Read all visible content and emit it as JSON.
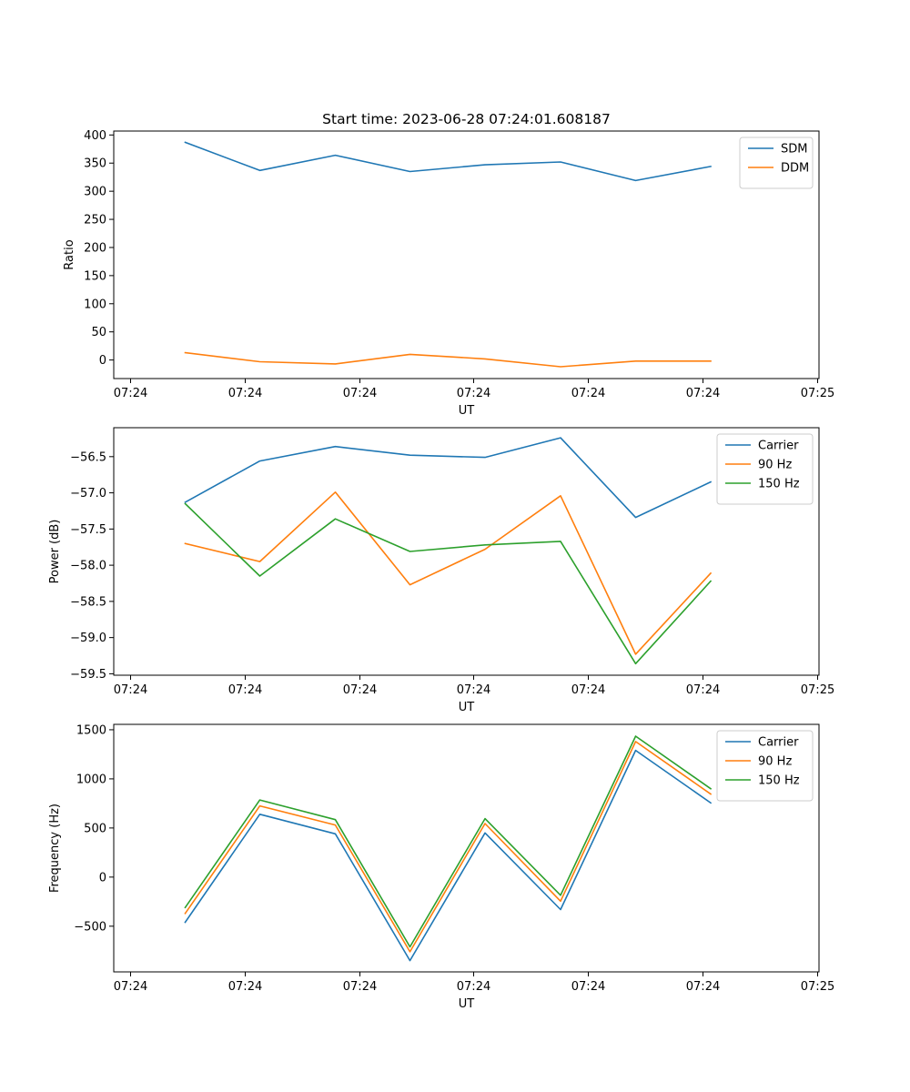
{
  "title": "Start time: 2023-06-28 07:24:01.608187",
  "colors": {
    "blue": "#1f77b4",
    "orange": "#ff7f0e",
    "green": "#2ca02c"
  },
  "chart_data": [
    {
      "type": "line",
      "xlabel": "UT",
      "ylabel": "Ratio",
      "x_tick_labels": [
        "07:24",
        "07:24",
        "07:24",
        "07:24",
        "07:24",
        "07:24",
        "07:25"
      ],
      "y_ticks": [
        0,
        50,
        100,
        150,
        200,
        250,
        300,
        350,
        400
      ],
      "y_tick_labels": [
        "0",
        "50",
        "100",
        "150",
        "200",
        "250",
        "300",
        "350",
        "400"
      ],
      "ylim": [
        -33,
        407
      ],
      "legend_position": "upper right",
      "grid": false,
      "series": [
        {
          "name": "SDM",
          "color": "#1f77b4",
          "values": [
            387,
            337,
            364,
            335,
            347,
            352,
            319,
            344
          ]
        },
        {
          "name": "DDM",
          "color": "#ff7f0e",
          "values": [
            13,
            -3,
            -7,
            10,
            2,
            -12,
            -2,
            -2
          ]
        }
      ]
    },
    {
      "type": "line",
      "xlabel": "UT",
      "ylabel": "Power (dB)",
      "x_tick_labels": [
        "07:24",
        "07:24",
        "07:24",
        "07:24",
        "07:24",
        "07:24",
        "07:25"
      ],
      "y_ticks": [
        -56.5,
        -57.0,
        -57.5,
        -58.0,
        -58.5,
        -59.0,
        -59.5
      ],
      "y_tick_labels": [
        "−56.5",
        "−57.0",
        "−57.5",
        "−58.0",
        "−58.5",
        "−59.0",
        "−59.5"
      ],
      "ylim": [
        -59.52,
        -56.1
      ],
      "legend_position": "upper right",
      "grid": false,
      "series": [
        {
          "name": "Carrier",
          "color": "#1f77b4",
          "values": [
            -57.13,
            -56.56,
            -56.36,
            -56.48,
            -56.51,
            -56.24,
            -57.34,
            -56.85
          ]
        },
        {
          "name": "90 Hz",
          "color": "#ff7f0e",
          "values": [
            -57.7,
            -57.95,
            -56.99,
            -58.27,
            -57.78,
            -57.04,
            -59.23,
            -58.11
          ]
        },
        {
          "name": "150 Hz",
          "color": "#2ca02c",
          "values": [
            -57.15,
            -58.15,
            -57.36,
            -57.81,
            -57.72,
            -57.67,
            -59.36,
            -58.22
          ]
        }
      ]
    },
    {
      "type": "line",
      "xlabel": "UT",
      "ylabel": "Frequency (Hz)",
      "x_tick_labels": [
        "07:24",
        "07:24",
        "07:24",
        "07:24",
        "07:24",
        "07:24",
        "07:25"
      ],
      "y_ticks": [
        -500,
        0,
        500,
        1000,
        1500
      ],
      "y_tick_labels": [
        "−500",
        "0",
        "500",
        "1000",
        "1500"
      ],
      "ylim": [
        -965,
        1555
      ],
      "legend_position": "upper right",
      "grid": false,
      "series": [
        {
          "name": "Carrier",
          "color": "#1f77b4",
          "values": [
            -460,
            640,
            440,
            -850,
            450,
            -330,
            1290,
            755
          ]
        },
        {
          "name": "90 Hz",
          "color": "#ff7f0e",
          "values": [
            -370,
            725,
            530,
            -760,
            545,
            -245,
            1380,
            845
          ]
        },
        {
          "name": "150 Hz",
          "color": "#2ca02c",
          "values": [
            -310,
            785,
            585,
            -710,
            595,
            -185,
            1435,
            900
          ]
        }
      ]
    }
  ]
}
